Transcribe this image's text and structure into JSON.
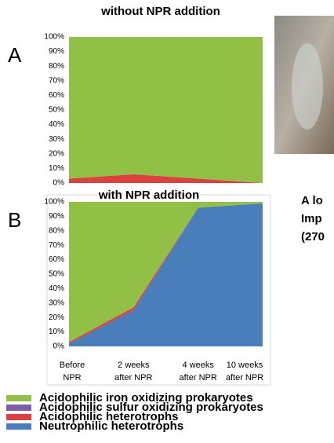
{
  "chart_data": [
    {
      "type": "area",
      "stacked": true,
      "title": "without NPR addition",
      "label": "A",
      "categories": [
        null,
        null,
        null,
        null
      ],
      "series": [
        {
          "color": "#92c047",
          "values": [
            97,
            94,
            97,
            100
          ]
        },
        {
          "color": "#7e5fa3",
          "values": [
            0,
            0,
            0,
            0
          ]
        },
        {
          "color": "#d9423f",
          "values": [
            3,
            6,
            3,
            0
          ]
        },
        {
          "color": "#4a7ebb",
          "values": [
            0,
            0,
            0,
            0
          ]
        }
      ],
      "ylim": [
        0,
        100
      ],
      "yticks": [
        {
          "value": 0,
          "label": "0%"
        },
        {
          "value": 10,
          "label": "10%"
        },
        {
          "value": 20,
          "label": "20%"
        },
        {
          "value": 30,
          "label": "30%"
        },
        {
          "value": 40,
          "label": "40%"
        },
        {
          "value": 50,
          "label": "50%"
        },
        {
          "value": 60,
          "label": "60%"
        },
        {
          "value": 70,
          "label": "70%"
        },
        {
          "value": 80,
          "label": "80%"
        },
        {
          "value": 90,
          "label": "90%"
        },
        {
          "value": 100,
          "label": "100%"
        }
      ]
    },
    {
      "type": "area",
      "stacked": true,
      "title": "with NPR addition",
      "label": "B",
      "categories": [
        "Before NPR",
        "2 weeks after NPR",
        "4 weeks after NPR",
        "10 weeks after NPR"
      ],
      "series": [
        {
          "name": "Acidophilic iron oxidizing prokaryotes",
          "color": "#92c047",
          "values": [
            97,
            73,
            4,
            1
          ]
        },
        {
          "name": "Acidophilic sulfur oxidizing prokaryotes",
          "color": "#7e5fa3",
          "values": [
            0,
            0,
            0,
            0
          ]
        },
        {
          "name": "Acidophilic heterotrophs",
          "color": "#d9423f",
          "values": [
            1,
            2,
            0,
            0
          ]
        },
        {
          "name": "Neutrophilic heterotrophs",
          "color": "#4a7ebb",
          "values": [
            2,
            25,
            96,
            99
          ]
        }
      ],
      "ylim": [
        0,
        100
      ],
      "yticks": [
        {
          "value": 0,
          "label": "0%"
        },
        {
          "value": 10,
          "label": "10%"
        },
        {
          "value": 20,
          "label": "20%"
        },
        {
          "value": 30,
          "label": "30%"
        },
        {
          "value": 40,
          "label": "40%"
        },
        {
          "value": 50,
          "label": "50%"
        },
        {
          "value": 60,
          "label": "60%"
        },
        {
          "value": 70,
          "label": "70%"
        },
        {
          "value": 80,
          "label": "80%"
        },
        {
          "value": 90,
          "label": "90%"
        },
        {
          "value": 100,
          "label": "100%"
        }
      ]
    }
  ],
  "side_text": [
    "A lo",
    "Imp",
    "(270"
  ]
}
